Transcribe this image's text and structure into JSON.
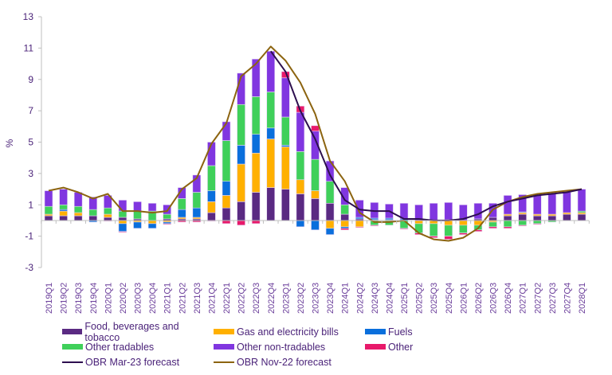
{
  "chart_data": {
    "type": "bar",
    "stacked": true,
    "title": "",
    "xlabel": "",
    "ylabel": "%",
    "ylim": [
      -3,
      13
    ],
    "yticks": [
      13,
      11,
      9,
      7,
      5,
      3,
      1,
      -1,
      -3
    ],
    "grid": false,
    "legend_position": "bottom",
    "categories": [
      "2019Q1",
      "2019Q2",
      "2019Q3",
      "2019Q4",
      "2020Q1",
      "2020Q2",
      "2020Q3",
      "2020Q4",
      "2021Q1",
      "2021Q2",
      "2021Q3",
      "2021Q4",
      "2022Q1",
      "2022Q2",
      "2022Q3",
      "2022Q4",
      "2023Q1",
      "2023Q2",
      "2023Q3",
      "2023Q4",
      "2024Q1",
      "2024Q2",
      "2024Q3",
      "2024Q4",
      "2025Q1",
      "2025Q2",
      "2025Q3",
      "2025Q4",
      "2026Q1",
      "2026Q2",
      "2026Q3",
      "2026Q4",
      "2027Q1",
      "2027Q2",
      "2027Q3",
      "2027Q4",
      "2028Q1"
    ],
    "series": [
      {
        "name": "Food, beverages and tobacco",
        "color": "#5a2a82",
        "values": [
          0.3,
          0.3,
          0.3,
          0.3,
          0.2,
          0.2,
          0.1,
          0.0,
          0.1,
          0.1,
          0.1,
          0.5,
          0.8,
          1.2,
          1.8,
          2.1,
          2.0,
          1.7,
          1.4,
          1.1,
          0.4,
          0.1,
          0.05,
          0.05,
          0,
          0,
          0,
          0.05,
          0,
          0.1,
          0.2,
          0.3,
          0.4,
          0.3,
          0.3,
          0.4,
          0.4
        ]
      },
      {
        "name": "Gas and electricity bills",
        "color": "#ffb000",
        "values": [
          0.1,
          0.3,
          0.2,
          0,
          0.2,
          -0.2,
          -0.1,
          -0.2,
          -0.1,
          0.1,
          0.1,
          0.7,
          0.8,
          2.4,
          2.5,
          3.1,
          2.7,
          0.9,
          0.5,
          -0.5,
          -0.4,
          -0.4,
          0,
          0,
          0,
          -0.2,
          -0.2,
          -0.3,
          -0.3,
          -0.3,
          -0.1,
          0.1,
          0.1,
          0.1,
          0.1,
          0.1,
          0.1
        ]
      },
      {
        "name": "Fuels",
        "color": "#0a6fdc",
        "values": [
          0,
          0.1,
          0,
          -0.1,
          0,
          -0.5,
          -0.4,
          -0.3,
          -0.1,
          0.5,
          0.6,
          0.7,
          0.9,
          1.2,
          1.2,
          0.7,
          0.1,
          -0.4,
          -0.6,
          -0.4,
          -0.1,
          0.1,
          0.1,
          0.1,
          0.1,
          0,
          0,
          0,
          0,
          0,
          0,
          0,
          0.05,
          0,
          0,
          0,
          0
        ]
      },
      {
        "name": "Other tradables",
        "color": "#3fd05a",
        "values": [
          0.5,
          0.3,
          0.4,
          0.4,
          0.4,
          0.4,
          0.5,
          0.6,
          0.3,
          0.7,
          1.0,
          1.6,
          2.6,
          2.6,
          2.4,
          2.3,
          1.8,
          1.8,
          2.0,
          1.4,
          0.6,
          0,
          -0.3,
          -0.3,
          -0.5,
          -0.6,
          -0.8,
          -0.7,
          -0.5,
          -0.3,
          -0.3,
          -0.4,
          -0.3,
          -0.2,
          -0.1,
          0,
          0.1
        ]
      },
      {
        "name": "Other non-tradables",
        "color": "#8036e0",
        "values": [
          1.0,
          1.0,
          0.9,
          0.8,
          0.8,
          0.7,
          0.6,
          0.5,
          0.6,
          0.7,
          1.1,
          1.5,
          1.2,
          2.0,
          2.4,
          2.6,
          2.5,
          2.5,
          1.8,
          1.3,
          1.1,
          1.1,
          1.0,
          0.9,
          1.0,
          1.0,
          1.1,
          1.1,
          1.0,
          1.0,
          0.9,
          1.2,
          1.1,
          1.2,
          1.3,
          1.3,
          1.4
        ]
      },
      {
        "name": "Other",
        "color": "#e8196a",
        "values": [
          0,
          0,
          0,
          0,
          -0.05,
          -0.05,
          0,
          0,
          -0.05,
          -0.1,
          -0.1,
          -0.05,
          -0.2,
          -0.3,
          -0.2,
          0,
          0.4,
          0.4,
          0.35,
          0,
          -0.1,
          -0.05,
          -0.05,
          0,
          -0.05,
          -0.1,
          -0.1,
          -0.2,
          -0.1,
          -0.1,
          -0.1,
          -0.1,
          -0.05,
          -0.05,
          0,
          0,
          0
        ]
      }
    ],
    "lines": [
      {
        "name": "OBR Mar-23 forecast",
        "color": "#2d0f4f",
        "values": [
          null,
          null,
          null,
          null,
          null,
          null,
          null,
          null,
          null,
          null,
          null,
          null,
          null,
          null,
          null,
          10.8,
          9.5,
          7.0,
          5.2,
          2.9,
          1.3,
          0.7,
          0.6,
          0.6,
          0.1,
          0.1,
          0.0,
          0.0,
          0.1,
          0.4,
          0.9,
          1.2,
          1.4,
          1.6,
          1.7,
          1.8,
          2.0
        ]
      },
      {
        "name": "OBR Nov-22 forecast",
        "color": "#8c6410",
        "values": [
          1.9,
          2.1,
          1.8,
          1.4,
          1.7,
          0.6,
          0.6,
          0.5,
          0.6,
          2.0,
          2.7,
          4.9,
          6.2,
          9.2,
          10.0,
          11.1,
          10.2,
          8.8,
          6.8,
          3.8,
          2.5,
          0.5,
          -0.1,
          -0.1,
          0.0,
          -0.8,
          -1.2,
          -1.3,
          -1.1,
          -0.5,
          0.7,
          1.2,
          1.5,
          1.7,
          1.8,
          1.9,
          2.0
        ]
      }
    ]
  },
  "legend": {
    "items": [
      {
        "label": "Food, beverages and tobacco",
        "color": "#5a2a82",
        "kind": "box"
      },
      {
        "label": "Gas and electricity bills",
        "color": "#ffb000",
        "kind": "box"
      },
      {
        "label": "Fuels",
        "color": "#0a6fdc",
        "kind": "box"
      },
      {
        "label": "Other tradables",
        "color": "#3fd05a",
        "kind": "box"
      },
      {
        "label": "Other non-tradables",
        "color": "#8036e0",
        "kind": "box"
      },
      {
        "label": "Other",
        "color": "#e8196a",
        "kind": "box"
      },
      {
        "label": "OBR Mar-23 forecast",
        "color": "#2d0f4f",
        "kind": "line"
      },
      {
        "label": "OBR Nov-22 forecast",
        "color": "#8c6410",
        "kind": "line"
      }
    ]
  }
}
